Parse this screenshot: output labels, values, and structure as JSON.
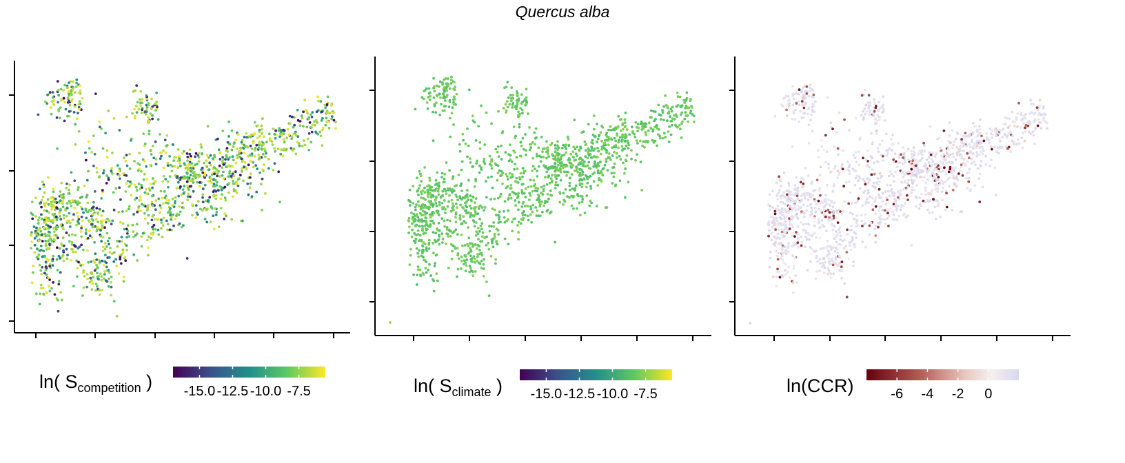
{
  "title": "Quercus alba",
  "chart_data": [
    {
      "type": "scatter",
      "panel": "left",
      "title": "",
      "xlabel": "",
      "ylabel": "",
      "x_ticks_count": 6,
      "y_ticks_count": 5,
      "color_variable": {
        "legend_text_prefix": "ln( S",
        "legend_text_sub": "competition",
        "legend_text_suffix": " )",
        "colormap": "viridis",
        "range": [
          -17,
          -5.5
        ],
        "tick_values": [
          -15.0,
          -12.5,
          -10.0,
          -7.5
        ],
        "tick_labels": [
          "-15.0",
          "-12.5",
          "-10.0",
          "-7.5"
        ]
      },
      "description_of_points": "Thousands of plot locations forming the range of Quercus alba; colors scattered across full viridis range, mostly green-yellow"
    },
    {
      "type": "scatter",
      "panel": "middle",
      "title": "",
      "xlabel": "",
      "ylabel": "",
      "x_ticks_count": 6,
      "y_ticks_count": 4,
      "color_variable": {
        "legend_text_prefix": "ln( S",
        "legend_text_sub": "climate",
        "legend_text_suffix": " )",
        "colormap": "viridis",
        "range": [
          -17,
          -5.5
        ],
        "tick_values": [
          -15.0,
          -12.5,
          -10.0,
          -7.5
        ],
        "tick_labels": [
          "-15.0",
          "-12.5",
          "-10.0",
          "-7.5"
        ]
      },
      "description_of_points": "Same locations; nearly uniform green color (about -8 to -9)"
    },
    {
      "type": "scatter",
      "panel": "right",
      "title": "",
      "xlabel": "",
      "ylabel": "",
      "x_ticks_count": 6,
      "y_ticks_count": 4,
      "color_variable": {
        "legend_text": "ln(CCR)",
        "colormap": "diverging brown-white-lavender",
        "range": [
          -8,
          2
        ],
        "tick_values": [
          -6,
          -4,
          -2,
          0
        ],
        "tick_labels": [
          "-6",
          "-4",
          "-2",
          "0"
        ]
      },
      "description_of_points": "Same locations; mostly pale lavender (near 0), scattered dark red points (about -6)"
    }
  ],
  "colors": {
    "viridis": [
      "#440154",
      "#3b528b",
      "#21908c",
      "#5dc863",
      "#fde725"
    ],
    "ccr": [
      "#67000d",
      "#b35c55",
      "#e8c8c0",
      "#f6f0f0",
      "#d8d8f0"
    ],
    "climate_green": "#5cbf4a"
  }
}
